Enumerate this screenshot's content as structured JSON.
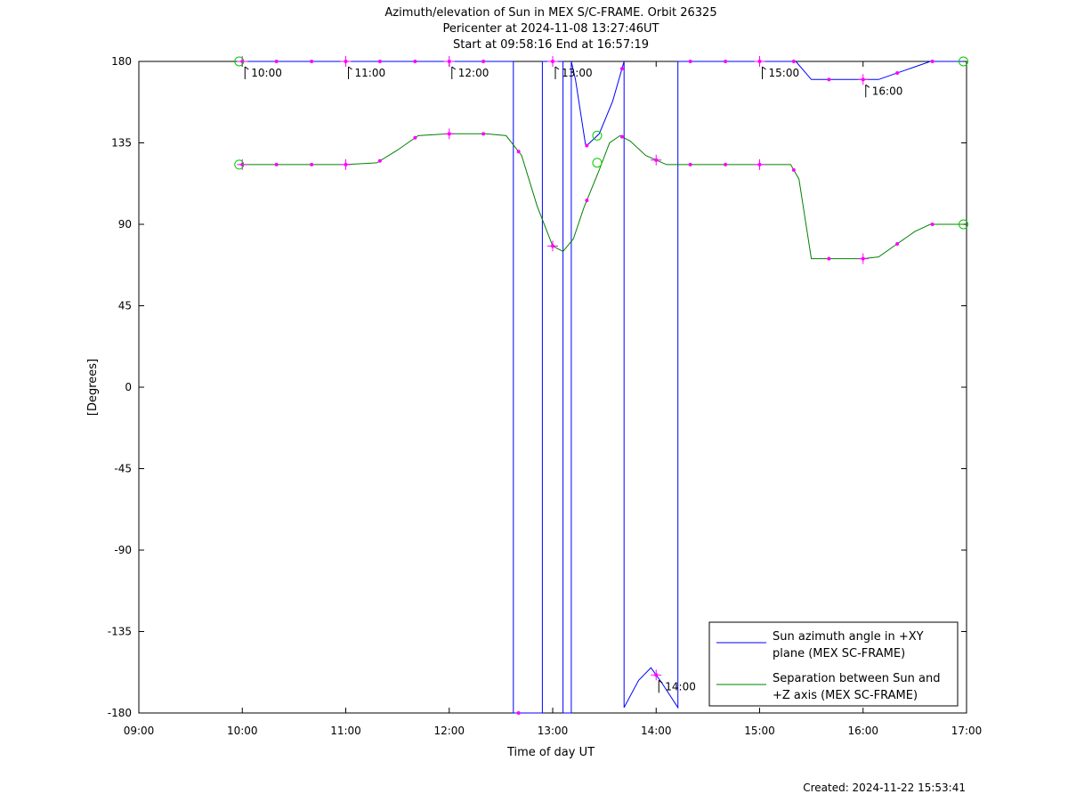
{
  "chart_data": {
    "type": "line",
    "title_lines": [
      "Azimuth/elevation of Sun in MEX S/C-FRAME.  Orbit 26325",
      "Pericenter at 2024-11-08 13:27:46UT",
      "Start at 09:58:16 End at 16:57:19"
    ],
    "xlabel": "Time of day UT",
    "ylabel": "[Degrees]",
    "xlim": [
      9,
      17
    ],
    "ylim": [
      -180,
      180
    ],
    "x_ticks": [
      9,
      10,
      11,
      12,
      13,
      14,
      15,
      16,
      17
    ],
    "x_tick_labels": [
      "09:00",
      "10:00",
      "11:00",
      "12:00",
      "13:00",
      "14:00",
      "15:00",
      "16:00",
      "17:00"
    ],
    "y_ticks": [
      180,
      135,
      90,
      45,
      0,
      -45,
      -90,
      -135,
      -180
    ],
    "y_tick_labels": [
      "180",
      "135",
      "90",
      "45",
      "0",
      "-45",
      "-90",
      "-135",
      "-180"
    ],
    "legend_position": "bottom-right",
    "series": [
      {
        "name": "Sun azimuth angle in +XY plane (MEX SC-FRAME)",
        "legend_lines": [
          "Sun azimuth angle in +XY",
          "plane (MEX SC-FRAME)"
        ],
        "color": "#0000ff",
        "x": [
          9.97,
          10.3,
          10.7,
          11.0,
          11.5,
          12.0,
          12.5,
          12.62,
          12.62,
          12.9,
          12.9,
          13.1,
          13.1,
          13.18,
          13.18,
          13.22,
          13.32,
          13.45,
          13.58,
          13.69,
          13.69,
          13.83,
          13.95,
          14.05,
          14.21,
          14.21,
          14.5,
          15.0,
          15.35,
          15.5,
          15.75,
          16.0,
          16.15,
          16.3,
          16.5,
          16.65,
          16.97
        ],
        "y": [
          180,
          180,
          180,
          180,
          180,
          180,
          180,
          180,
          -180,
          -180,
          180,
          180,
          -180,
          -180,
          180,
          170,
          133,
          140,
          158,
          180,
          -177,
          -162,
          -155,
          -163,
          -177,
          180,
          180,
          180,
          180,
          170,
          170,
          170,
          170,
          173,
          177,
          180,
          180
        ]
      },
      {
        "name": "Separation between Sun and +Z axis (MEX SC-FRAME)",
        "legend_lines": [
          "Separation between Sun and",
          "+Z axis (MEX SC-FRAME)"
        ],
        "color": "#008000",
        "x": [
          9.97,
          10.5,
          11.0,
          11.3,
          11.5,
          11.7,
          12.0,
          12.35,
          12.55,
          12.7,
          12.85,
          13.0,
          13.1,
          13.2,
          13.3,
          13.45,
          13.55,
          13.65,
          13.75,
          13.9,
          14.1,
          14.5,
          15.0,
          15.3,
          15.38,
          15.5,
          15.75,
          16.0,
          16.15,
          16.3,
          16.5,
          16.65,
          16.97
        ],
        "y": [
          123,
          123,
          123,
          124,
          131,
          139,
          140,
          140,
          139,
          128,
          100,
          78,
          75,
          82,
          99,
          120,
          135,
          139,
          136,
          128,
          123,
          123,
          123,
          123,
          115,
          71,
          71,
          71,
          72,
          78,
          86,
          90,
          90
        ]
      }
    ],
    "markers": {
      "color": "#ff00ff",
      "dots_x": [
        10.0,
        10.33,
        10.67,
        11.0,
        11.33,
        11.67,
        12.0,
        12.33,
        12.67,
        13.0,
        13.33,
        13.67,
        14.0,
        14.33,
        14.67,
        15.0,
        15.33,
        15.67,
        16.0,
        16.33,
        16.67
      ],
      "hour_crosses_x": [
        10,
        11,
        12,
        13,
        14,
        15,
        16
      ],
      "start_end_x": [
        9.97,
        16.97
      ]
    },
    "hour_annotations": {
      "times": [
        10,
        11,
        12,
        13,
        14,
        15,
        16
      ],
      "labels": [
        "10:00",
        "11:00",
        "12:00",
        "13:00",
        "14:00",
        "15:00",
        "16:00"
      ],
      "series_index": [
        0,
        0,
        0,
        0,
        0,
        0,
        0
      ]
    },
    "pericenter_circles": [
      {
        "x": 13.43,
        "y": 139
      },
      {
        "x": 13.43,
        "y": 124
      }
    ],
    "footer": "Created: 2024-11-22 15:53:41"
  }
}
